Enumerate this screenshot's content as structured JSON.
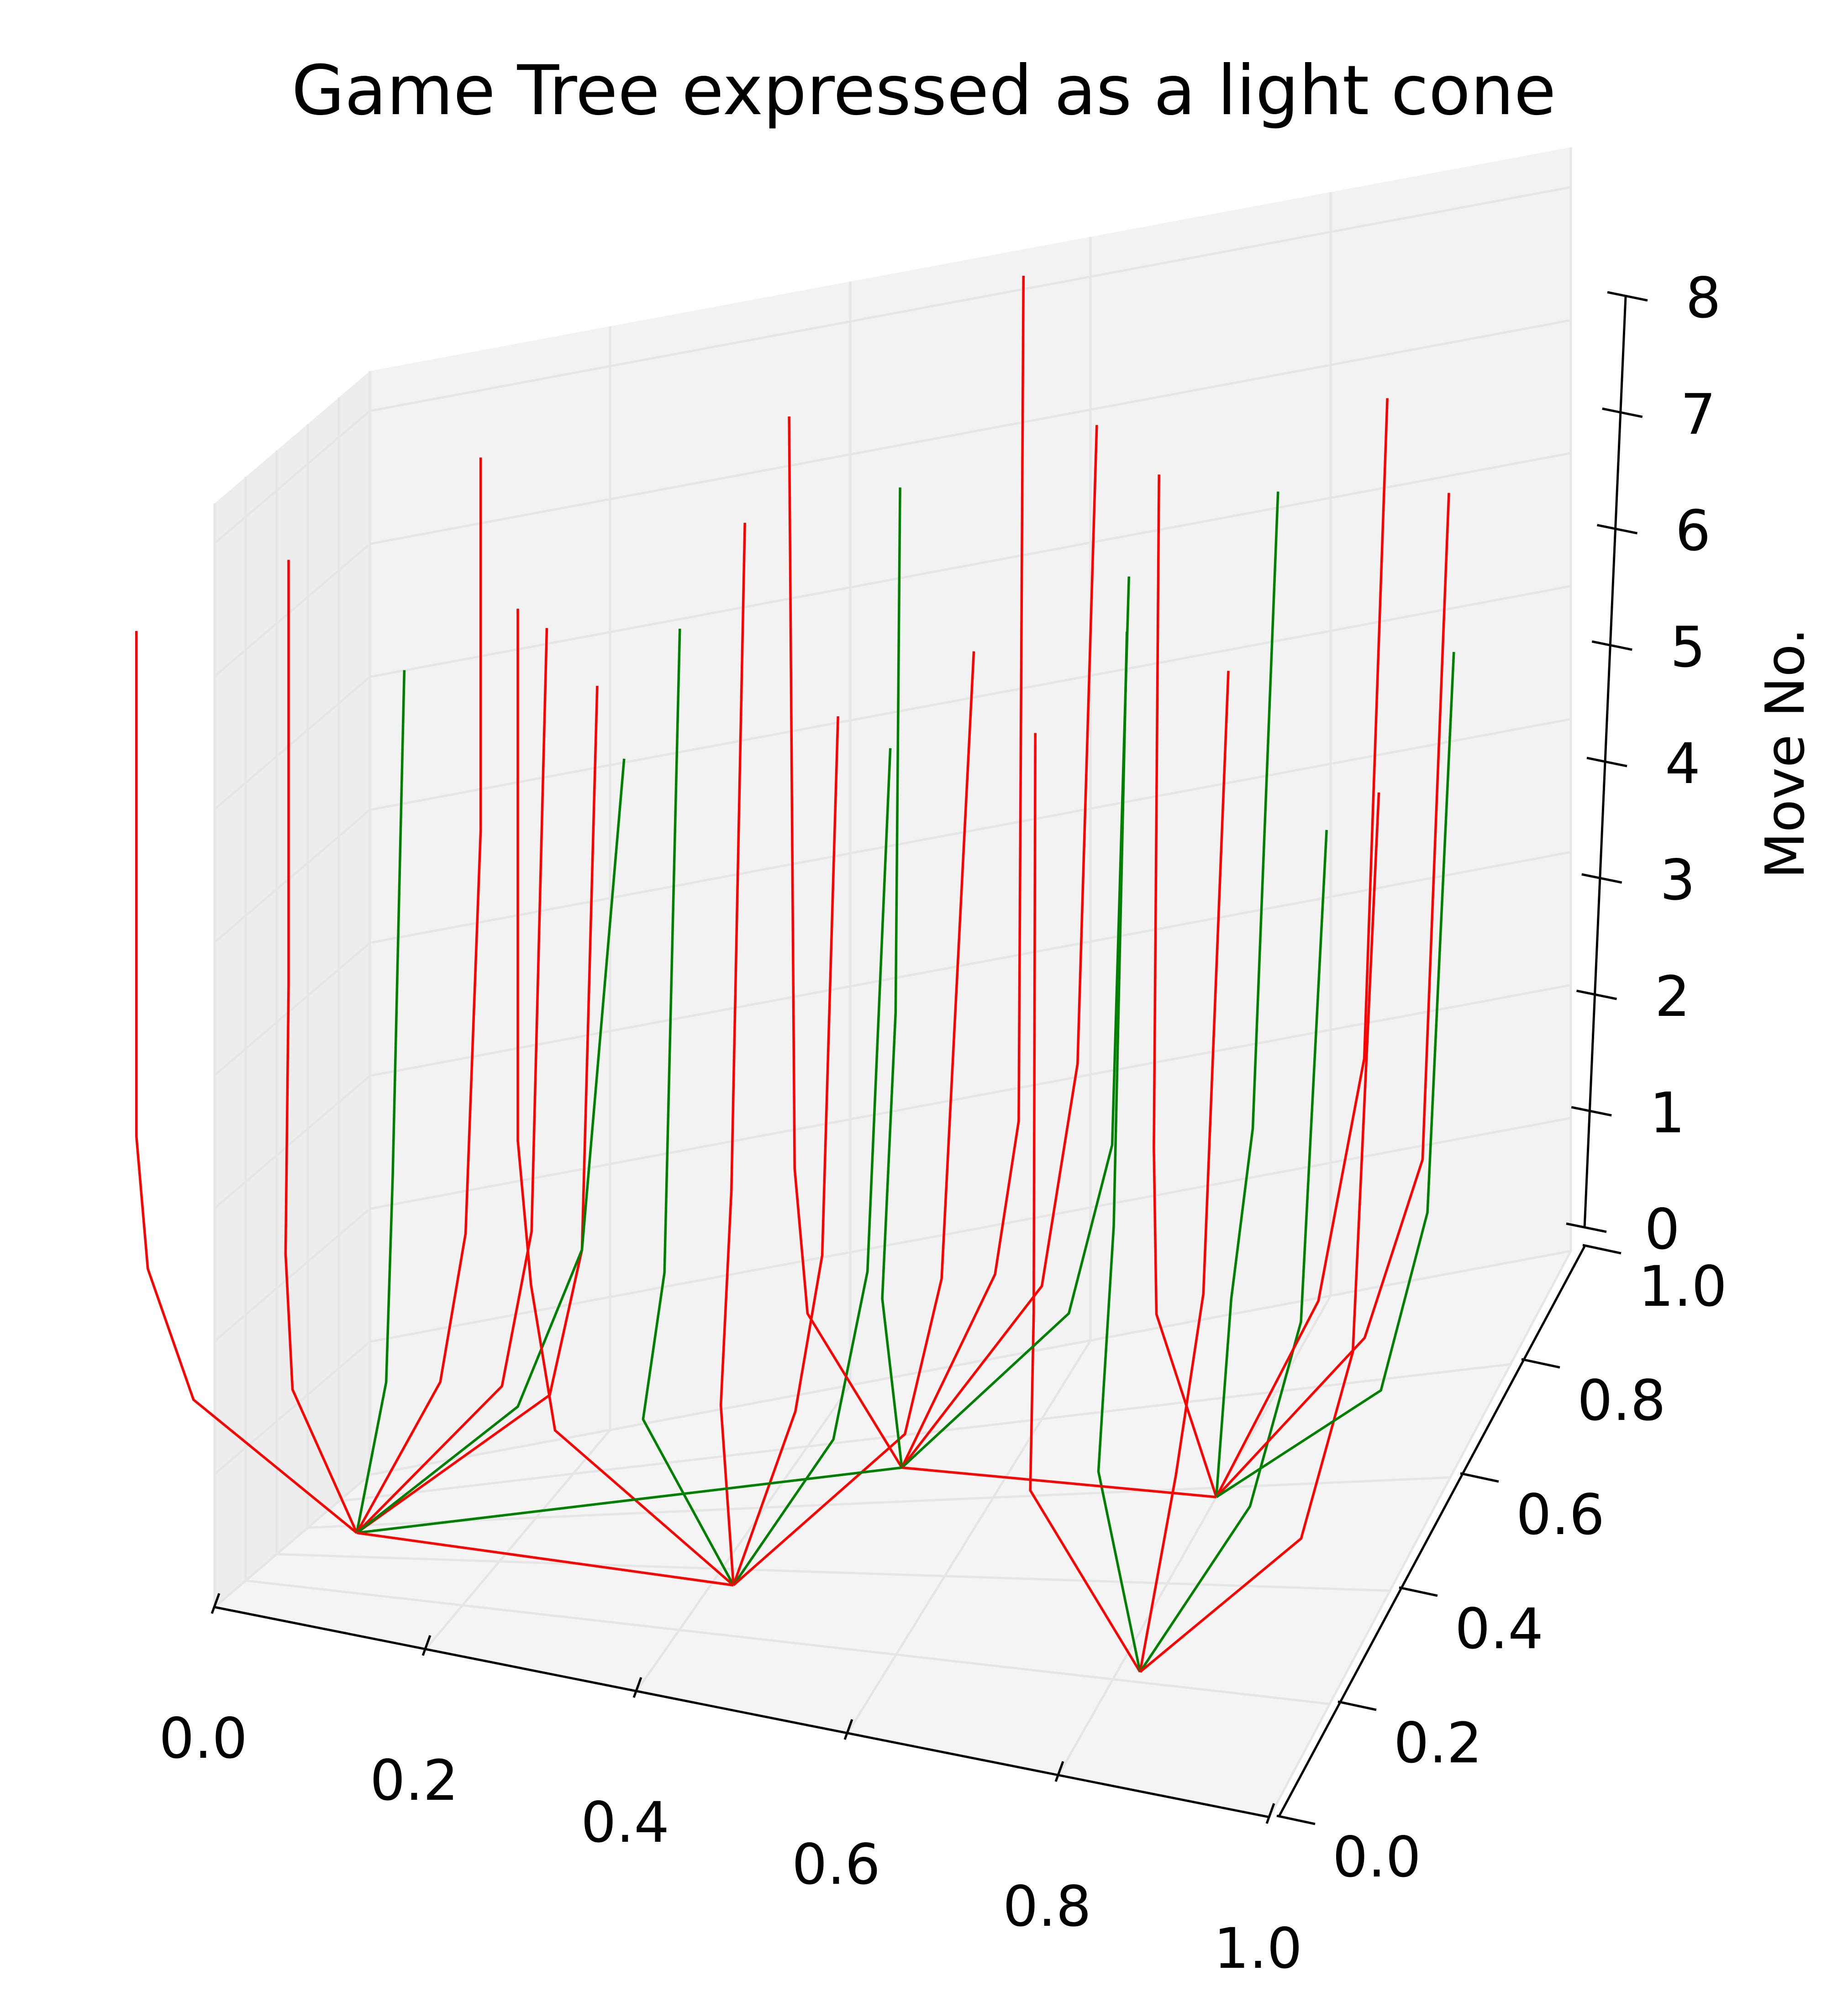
{
  "chart_data": {
    "type": "line3d",
    "title": "Game Tree expressed as a light cone",
    "xlabel": "",
    "ylabel": "",
    "zlabel": "Move No.",
    "xlim": [
      0.0,
      1.0
    ],
    "ylim": [
      0.0,
      1.0
    ],
    "zlim": [
      0,
      8
    ],
    "x_ticks": [
      "0.0",
      "0.2",
      "0.4",
      "0.6",
      "0.8",
      "1.0"
    ],
    "y_ticks": [
      "0.0",
      "0.2",
      "0.4",
      "0.6",
      "0.8",
      "1.0"
    ],
    "z_ticks": [
      "0",
      "1",
      "2",
      "3",
      "4",
      "5",
      "6",
      "7",
      "8"
    ],
    "grid": true,
    "colors": {
      "loss": "#ff0000",
      "win": "#008000",
      "pane": "#f2f2f2",
      "grid": "#e6e6e6"
    },
    "root_nodes": [
      {
        "id": "A",
        "x": 0.05,
        "y": 0.55
      },
      {
        "id": "B",
        "x": 0.42,
        "y": 0.35
      },
      {
        "id": "C",
        "x": 0.82,
        "y": 0.22
      },
      {
        "id": "D",
        "x": 0.5,
        "y": 0.7
      },
      {
        "id": "E",
        "x": 0.8,
        "y": 0.58
      }
    ],
    "root_connections": [
      {
        "from": "A",
        "to": "D",
        "color": "win"
      },
      {
        "from": "D",
        "to": "E",
        "color": "loss"
      },
      {
        "from": "A",
        "to": "B",
        "color": "loss"
      }
    ],
    "branches": [
      {
        "root": "A",
        "color": "loss",
        "path": [
          [
            0.05,
            0.55,
            0
          ],
          [
            -0.1,
            0.6,
            1
          ],
          [
            -0.14,
            0.6,
            2
          ],
          [
            -0.15,
            0.6,
            3
          ],
          [
            -0.15,
            0.6,
            6.8
          ]
        ]
      },
      {
        "root": "A",
        "color": "loss",
        "path": [
          [
            0.05,
            0.55,
            0
          ],
          [
            -0.02,
            0.65,
            1
          ],
          [
            -0.03,
            0.68,
            2
          ],
          [
            -0.03,
            0.7,
            4
          ],
          [
            -0.03,
            0.7,
            7.2
          ]
        ]
      },
      {
        "root": "A",
        "color": "win",
        "path": [
          [
            0.05,
            0.55,
            0
          ],
          [
            0.06,
            0.66,
            1
          ],
          [
            0.06,
            0.7,
            2.5
          ],
          [
            0.07,
            0.7,
            6.3
          ]
        ]
      },
      {
        "root": "A",
        "color": "loss",
        "path": [
          [
            0.05,
            0.55,
            0
          ],
          [
            0.11,
            0.64,
            1
          ],
          [
            0.12,
            0.72,
            2
          ],
          [
            0.13,
            0.74,
            5
          ],
          [
            0.13,
            0.74,
            7.8
          ]
        ]
      },
      {
        "root": "A",
        "color": "loss",
        "path": [
          [
            0.05,
            0.55,
            0
          ],
          [
            0.17,
            0.6,
            1
          ],
          [
            0.18,
            0.7,
            2
          ],
          [
            0.19,
            0.72,
            6.5
          ]
        ]
      },
      {
        "root": "A",
        "color": "loss",
        "path": [
          [
            0.05,
            0.55,
            0
          ],
          [
            0.22,
            0.55,
            1
          ],
          [
            0.24,
            0.6,
            2
          ],
          [
            0.25,
            0.62,
            6.2
          ]
        ]
      },
      {
        "root": "A",
        "color": "win",
        "path": [
          [
            0.05,
            0.55,
            0
          ],
          [
            0.2,
            0.5,
            1
          ],
          [
            0.24,
            0.6,
            2
          ],
          [
            0.26,
            0.7,
            5.5
          ]
        ]
      },
      {
        "root": "B",
        "color": "loss",
        "path": [
          [
            0.42,
            0.35,
            0
          ],
          [
            0.25,
            0.4,
            1
          ],
          [
            0.22,
            0.45,
            2
          ],
          [
            0.2,
            0.5,
            3
          ],
          [
            0.2,
            0.5,
            7.0
          ]
        ]
      },
      {
        "root": "B",
        "color": "win",
        "path": [
          [
            0.42,
            0.35,
            0
          ],
          [
            0.32,
            0.45,
            1
          ],
          [
            0.33,
            0.5,
            2
          ],
          [
            0.34,
            0.52,
            6.8
          ]
        ]
      },
      {
        "root": "B",
        "color": "loss",
        "path": [
          [
            0.42,
            0.35,
            0
          ],
          [
            0.38,
            0.5,
            1
          ],
          [
            0.38,
            0.55,
            2.5
          ],
          [
            0.39,
            0.56,
            7.5
          ]
        ]
      },
      {
        "root": "B",
        "color": "loss",
        "path": [
          [
            0.42,
            0.35,
            0
          ],
          [
            0.45,
            0.48,
            1
          ],
          [
            0.46,
            0.55,
            2
          ],
          [
            0.47,
            0.57,
            6.0
          ]
        ]
      },
      {
        "root": "B",
        "color": "win",
        "path": [
          [
            0.42,
            0.35,
            0
          ],
          [
            0.5,
            0.4,
            1
          ],
          [
            0.51,
            0.5,
            2
          ],
          [
            0.52,
            0.55,
            5.8
          ]
        ]
      },
      {
        "root": "B",
        "color": "loss",
        "path": [
          [
            0.42,
            0.35,
            0
          ],
          [
            0.56,
            0.42,
            1
          ],
          [
            0.58,
            0.48,
            2
          ],
          [
            0.6,
            0.52,
            6.6
          ]
        ]
      },
      {
        "root": "C",
        "color": "loss",
        "path": [
          [
            0.82,
            0.22,
            0
          ],
          [
            0.7,
            0.3,
            1
          ],
          [
            0.68,
            0.4,
            2
          ],
          [
            0.67,
            0.45,
            6.2
          ]
        ]
      },
      {
        "root": "C",
        "color": "win",
        "path": [
          [
            0.82,
            0.22,
            0
          ],
          [
            0.75,
            0.35,
            1
          ],
          [
            0.74,
            0.45,
            2.5
          ],
          [
            0.74,
            0.5,
            6.8
          ]
        ]
      },
      {
        "root": "C",
        "color": "loss",
        "path": [
          [
            0.82,
            0.22,
            0
          ],
          [
            0.82,
            0.35,
            1
          ],
          [
            0.82,
            0.45,
            2
          ],
          [
            0.83,
            0.5,
            6.5
          ]
        ]
      },
      {
        "root": "C",
        "color": "win",
        "path": [
          [
            0.82,
            0.22,
            0
          ],
          [
            0.9,
            0.3,
            1
          ],
          [
            0.92,
            0.4,
            2
          ],
          [
            0.93,
            0.45,
            5.5
          ]
        ]
      },
      {
        "root": "C",
        "color": "loss",
        "path": [
          [
            0.82,
            0.22,
            0
          ],
          [
            0.96,
            0.25,
            1
          ],
          [
            0.98,
            0.35,
            2
          ],
          [
            0.99,
            0.4,
            6.0
          ]
        ]
      },
      {
        "root": "D",
        "color": "loss",
        "path": [
          [
            0.5,
            0.7,
            0
          ],
          [
            0.4,
            0.8,
            1
          ],
          [
            0.38,
            0.85,
            2
          ],
          [
            0.37,
            0.88,
            7.6
          ]
        ]
      },
      {
        "root": "D",
        "color": "win",
        "path": [
          [
            0.5,
            0.7,
            0
          ],
          [
            0.46,
            0.82,
            1
          ],
          [
            0.46,
            0.88,
            3
          ],
          [
            0.46,
            0.9,
            6.9
          ]
        ]
      },
      {
        "root": "D",
        "color": "loss",
        "path": [
          [
            0.5,
            0.7,
            0
          ],
          [
            0.55,
            0.85,
            1
          ],
          [
            0.56,
            0.9,
            2
          ],
          [
            0.56,
            0.92,
            8.3
          ]
        ]
      },
      {
        "root": "D",
        "color": "loss",
        "path": [
          [
            0.5,
            0.7,
            0
          ],
          [
            0.6,
            0.8,
            1
          ],
          [
            0.62,
            0.85,
            2.5
          ],
          [
            0.63,
            0.88,
            7.2
          ]
        ]
      },
      {
        "root": "D",
        "color": "win",
        "path": [
          [
            0.5,
            0.7,
            0
          ],
          [
            0.64,
            0.72,
            1
          ],
          [
            0.66,
            0.8,
            2
          ],
          [
            0.67,
            0.82,
            6.2
          ]
        ]
      },
      {
        "root": "E",
        "color": "loss",
        "path": [
          [
            0.8,
            0.58,
            0
          ],
          [
            0.72,
            0.7,
            1
          ],
          [
            0.7,
            0.78,
            2
          ],
          [
            0.7,
            0.8,
            7.0
          ]
        ]
      },
      {
        "root": "E",
        "color": "win",
        "path": [
          [
            0.8,
            0.58,
            0
          ],
          [
            0.78,
            0.72,
            1
          ],
          [
            0.78,
            0.8,
            2
          ],
          [
            0.79,
            0.85,
            6.6
          ]
        ]
      },
      {
        "root": "E",
        "color": "loss",
        "path": [
          [
            0.8,
            0.58,
            0
          ],
          [
            0.86,
            0.7,
            1
          ],
          [
            0.88,
            0.78,
            2.5
          ],
          [
            0.89,
            0.82,
            7.3
          ]
        ]
      },
      {
        "root": "E",
        "color": "loss",
        "path": [
          [
            0.8,
            0.58,
            0
          ],
          [
            0.92,
            0.62,
            1
          ],
          [
            0.95,
            0.7,
            2
          ],
          [
            0.96,
            0.75,
            6.8
          ]
        ]
      },
      {
        "root": "E",
        "color": "win",
        "path": [
          [
            0.8,
            0.58,
            0
          ],
          [
            0.96,
            0.52,
            1
          ],
          [
            0.98,
            0.6,
            2
          ],
          [
            0.99,
            0.65,
            6.0
          ]
        ]
      }
    ]
  }
}
